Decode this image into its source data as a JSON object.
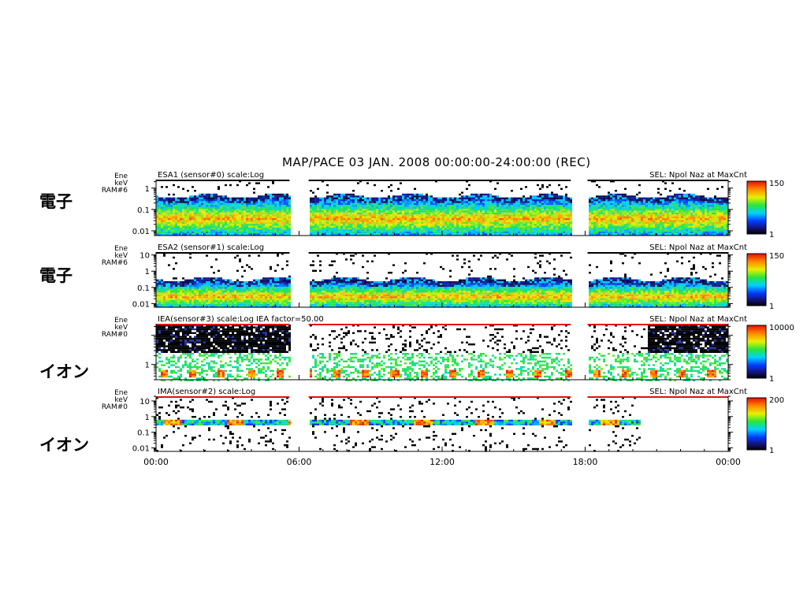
{
  "title": "MAP/PACE  03 JAN. 2008 00:00:00-24:00:00 (REC)",
  "species_labels": [
    "電子",
    "電子",
    "イオン",
    "イオン"
  ],
  "x_ticks": [
    "00:00",
    "06:00",
    "12:00",
    "18:00",
    "00:00"
  ],
  "chart_data": {
    "type": "heatmap",
    "x_unit": "hours",
    "x_range": [
      0,
      24
    ],
    "data_gaps": [
      [
        5.6,
        6.4
      ],
      [
        17.4,
        18.1
      ]
    ],
    "panels": [
      {
        "ylabel_lines": [
          "Ene",
          "keV",
          "RAM#6"
        ],
        "left_title": "ESA1 (sensor#0) scale:Log",
        "right_title": "SEL: Npol Naz at MaxCnt",
        "y_scale": "log",
        "y_range": [
          0.006,
          2.5
        ],
        "y_ticks": [
          {
            "v": 1,
            "t": "1"
          },
          {
            "v": 0.1,
            "t": "0.1"
          },
          {
            "v": 0.01,
            "t": "0.01"
          }
        ],
        "colorbar": {
          "max": "150",
          "min": "1"
        },
        "signal": {
          "kind": "electron",
          "band_low": 0.01,
          "band_high": 0.4,
          "peak": 0.04
        },
        "red_line": false,
        "valid_until": 24
      },
      {
        "ylabel_lines": [
          "Ene",
          "keV",
          "RAM#6"
        ],
        "left_title": "ESA2 (sensor#1) scale:Log",
        "right_title": "SEL: Npol Naz at MaxCnt",
        "y_scale": "log",
        "y_range": [
          0.006,
          15
        ],
        "y_ticks": [
          {
            "v": 10,
            "t": "10"
          },
          {
            "v": 1,
            "t": "1"
          },
          {
            "v": 0.1,
            "t": "0.1"
          },
          {
            "v": 0.01,
            "t": "0.01"
          }
        ],
        "colorbar": {
          "max": "150",
          "min": "1"
        },
        "signal": {
          "kind": "electron",
          "band_low": 0.01,
          "band_high": 0.3,
          "peak": 0.03
        },
        "red_line": false,
        "valid_until": 24
      },
      {
        "ylabel_lines": [
          "Ene",
          "keV",
          "RAM#0"
        ],
        "left_title": "IEA(sensor#3) scale:Log  IEA factor=50.00",
        "right_title": "SEL: Npol Naz at MaxCnt",
        "y_scale": "log",
        "y_range": [
          0.3,
          25
        ],
        "y_ticks": [
          {
            "v": 1,
            "t": "1"
          }
        ],
        "colorbar": {
          "max": "10000",
          "min": "1"
        },
        "signal": {
          "kind": "ion_iea",
          "band_low": 0.35,
          "band_high": 0.9,
          "peak": 0.5
        },
        "red_line": true,
        "valid_until": 24
      },
      {
        "ylabel_lines": [
          "Ene",
          "keV",
          "RAM#0"
        ],
        "left_title": "IMA(sensor#2) scale:Log",
        "right_title": "SEL: Npol Naz at MaxCnt",
        "y_scale": "log",
        "y_range": [
          0.006,
          20
        ],
        "y_ticks": [
          {
            "v": 10,
            "t": "10"
          },
          {
            "v": 1,
            "t": "1"
          },
          {
            "v": 0.1,
            "t": "0.1"
          },
          {
            "v": 0.01,
            "t": "0.01"
          }
        ],
        "colorbar": {
          "max": "200",
          "min": "1"
        },
        "signal": {
          "kind": "ion_ima",
          "band_low": 0.4,
          "band_high": 0.7,
          "peak": 0.5
        },
        "red_line": true,
        "valid_until": 20.3
      }
    ]
  }
}
